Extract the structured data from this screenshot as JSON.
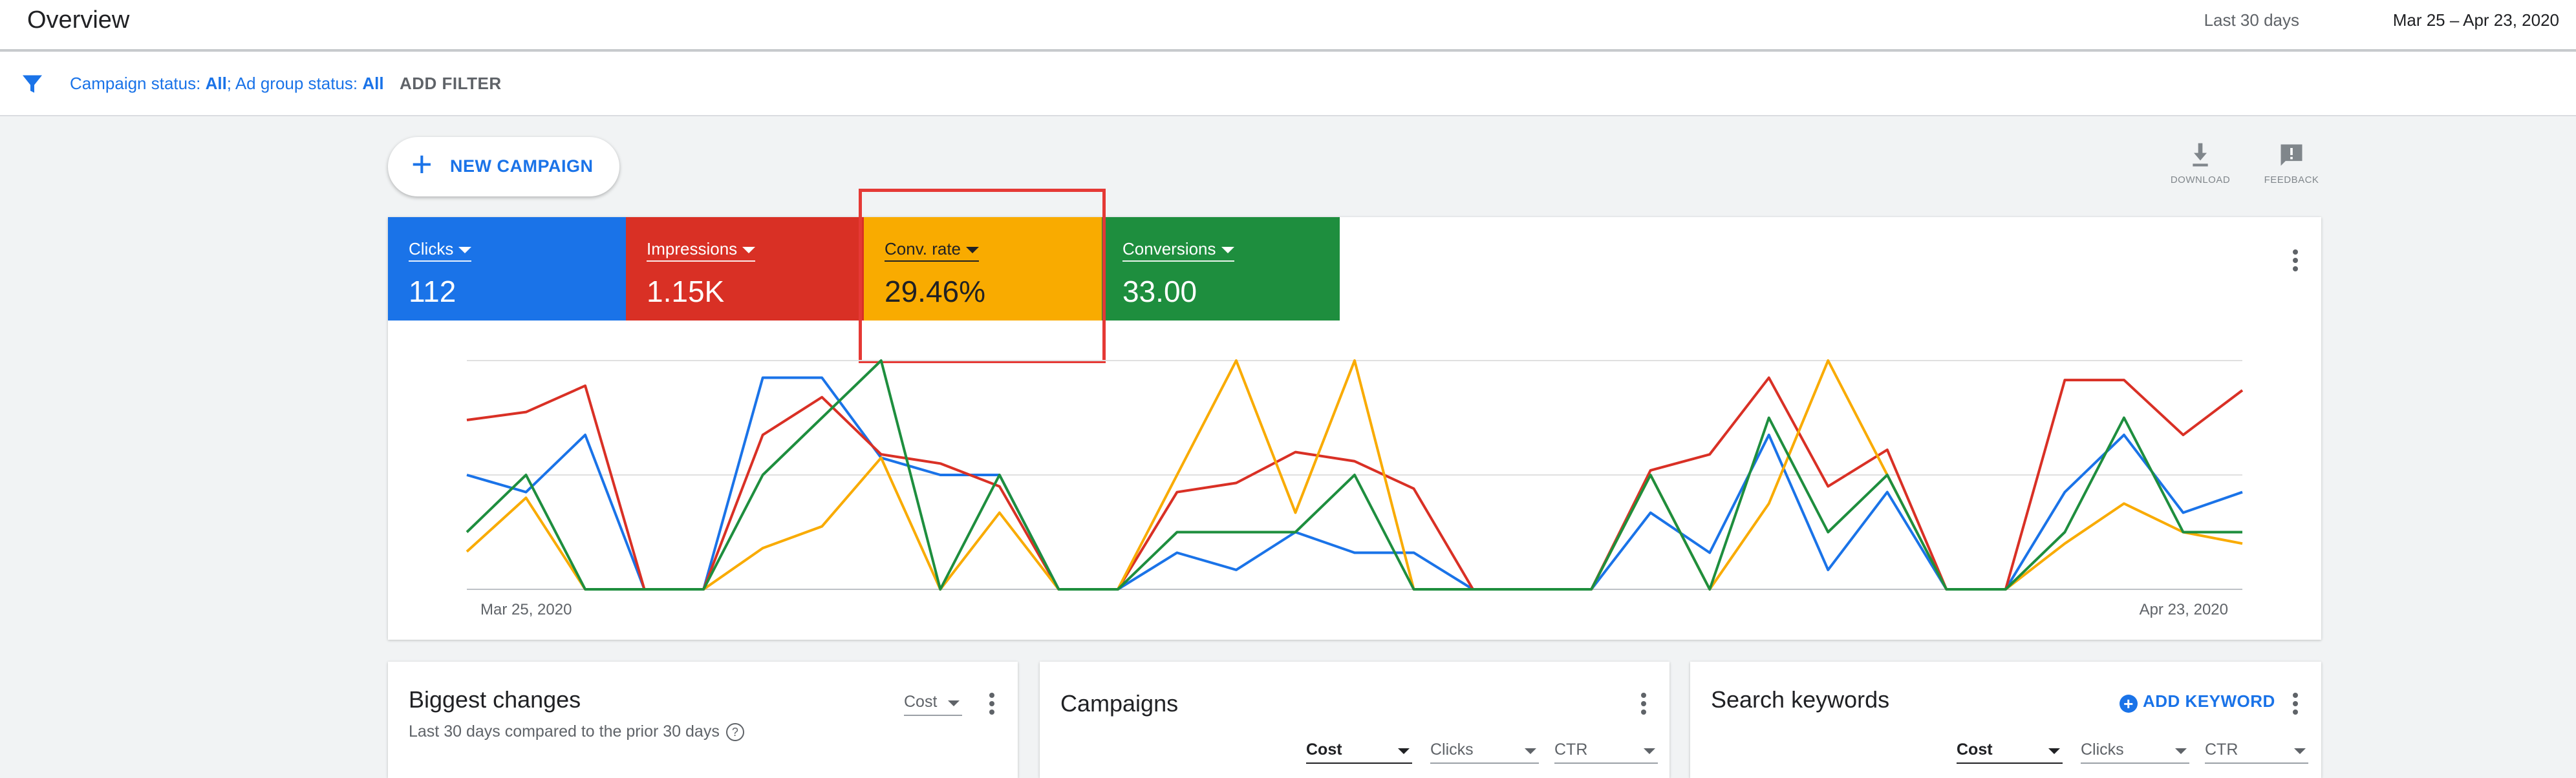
{
  "header": {
    "title": "Overview",
    "date_range_label": "Last 30 days",
    "date_range_value": "Mar 25 – Apr 23, 2020"
  },
  "filters": {
    "campaign_status_label": "Campaign status: ",
    "campaign_status_value": "All",
    "separator": "; ",
    "ad_group_status_label": "Ad group status: ",
    "ad_group_status_value": "All",
    "add_filter": "ADD FILTER"
  },
  "toolbar": {
    "new_campaign": "NEW CAMPAIGN",
    "download": "DOWNLOAD",
    "feedback": "FEEDBACK"
  },
  "metrics": [
    {
      "name": "Clicks",
      "value": "112",
      "color": "#1a73e8"
    },
    {
      "name": "Impressions",
      "value": "1.15K",
      "color": "#d93025"
    },
    {
      "name": "Conv. rate",
      "value": "29.46%",
      "color": "#f9ab00"
    },
    {
      "name": "Conversions",
      "value": "33.00",
      "color": "#1e8e3e"
    }
  ],
  "chart_data": {
    "type": "line",
    "x_start_label": "Mar 25, 2020",
    "x_end_label": "Apr 23, 2020",
    "grid": true,
    "ylim": [
      0,
      2
    ],
    "series": [
      {
        "name": "Clicks",
        "color": "#1a73e8",
        "values": [
          1.0,
          0.85,
          1.35,
          0,
          0,
          1.85,
          1.85,
          1.15,
          1.0,
          1.0,
          0,
          0,
          0.32,
          0.17,
          0.5,
          0.32,
          0.32,
          0,
          0,
          0,
          0.67,
          0.32,
          1.35,
          0.17,
          0.85,
          0,
          0,
          0.85,
          1.35,
          0.67,
          0.85
        ]
      },
      {
        "name": "Impressions",
        "color": "#d93025",
        "values": [
          1.48,
          1.55,
          1.78,
          0,
          0,
          1.35,
          1.68,
          1.18,
          1.1,
          0.9,
          0,
          0,
          0.85,
          0.93,
          1.2,
          1.12,
          0.88,
          0,
          0,
          0,
          1.04,
          1.18,
          1.85,
          0.9,
          1.22,
          0,
          0,
          1.83,
          1.83,
          1.35,
          1.74
        ]
      },
      {
        "name": "Conv. rate",
        "color": "#f9ab00",
        "values": [
          0.33,
          0.8,
          0,
          0,
          0,
          0.36,
          0.55,
          1.15,
          0,
          0.67,
          0,
          0,
          1.0,
          2.0,
          0.67,
          2.0,
          0,
          0,
          0,
          0,
          1.0,
          0,
          0.75,
          2.0,
          1.0,
          0,
          0,
          0.4,
          0.75,
          0.5,
          0.4
        ]
      },
      {
        "name": "Conversions",
        "color": "#1e8e3e",
        "values": [
          0.5,
          1.0,
          0,
          0,
          0,
          1.0,
          1.5,
          2.0,
          0,
          1.0,
          0,
          0,
          0.5,
          0.5,
          0.5,
          1.0,
          0,
          0,
          0,
          0,
          1.0,
          0,
          1.5,
          0.5,
          1.0,
          0,
          0,
          0.5,
          1.5,
          0.5,
          0.5
        ]
      }
    ]
  },
  "cards": {
    "biggest_changes": {
      "title": "Biggest changes",
      "subtitle": "Last 30 days compared to the prior 30 days",
      "dropdown": "Cost"
    },
    "campaigns": {
      "title": "Campaigns",
      "dropdowns": [
        "Cost",
        "Clicks",
        "CTR"
      ]
    },
    "search_keywords": {
      "title": "Search keywords",
      "add_keyword": "ADD KEYWORD",
      "dropdowns": [
        "Cost",
        "Clicks",
        "CTR"
      ]
    }
  }
}
